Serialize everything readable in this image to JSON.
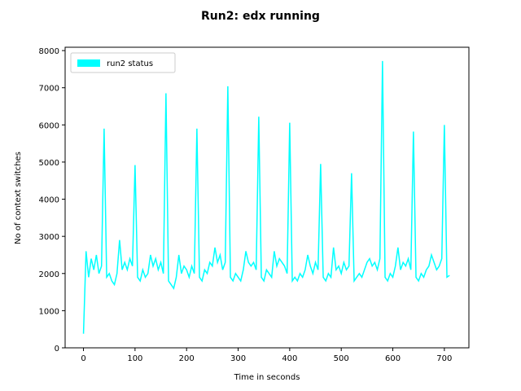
{
  "chart_data": {
    "type": "line",
    "title": "Run2: edx running",
    "xlabel": "Time  in seconds",
    "ylabel": "No of context switches",
    "x": [
      0,
      5,
      10,
      15,
      20,
      25,
      30,
      35,
      40,
      45,
      50,
      55,
      60,
      65,
      70,
      75,
      80,
      85,
      90,
      95,
      100,
      105,
      110,
      115,
      120,
      125,
      130,
      135,
      140,
      145,
      150,
      155,
      160,
      165,
      170,
      175,
      180,
      185,
      190,
      195,
      200,
      205,
      210,
      215,
      220,
      225,
      230,
      235,
      240,
      245,
      250,
      255,
      260,
      265,
      270,
      275,
      280,
      285,
      290,
      295,
      300,
      305,
      310,
      315,
      320,
      325,
      330,
      335,
      340,
      345,
      350,
      355,
      360,
      365,
      370,
      375,
      380,
      385,
      390,
      395,
      400,
      405,
      410,
      415,
      420,
      425,
      430,
      435,
      440,
      445,
      450,
      455,
      460,
      465,
      470,
      475,
      480,
      485,
      490,
      495,
      500,
      505,
      510,
      515,
      520,
      525,
      530,
      535,
      540,
      545,
      550,
      555,
      560,
      565,
      570,
      575,
      580,
      585,
      590,
      595,
      600,
      605,
      610,
      615,
      620,
      625,
      630,
      635,
      640,
      645,
      650,
      655,
      660,
      665,
      670,
      675,
      680,
      685,
      690,
      695,
      700,
      705,
      710
    ],
    "series": [
      {
        "name": "run2 status",
        "color": "#00ffff",
        "values": [
          380,
          2600,
          1900,
          2400,
          2100,
          2500,
          2000,
          2200,
          5900,
          1900,
          2000,
          1800,
          1700,
          2000,
          2900,
          2100,
          2300,
          2100,
          2400,
          2200,
          4920,
          1900,
          1800,
          2100,
          1900,
          2000,
          2500,
          2200,
          2400,
          2100,
          2300,
          2000,
          6850,
          1800,
          1700,
          1600,
          1900,
          2500,
          2000,
          2200,
          2100,
          1900,
          2200,
          2000,
          5900,
          1900,
          1800,
          2100,
          2000,
          2300,
          2200,
          2700,
          2300,
          2500,
          2100,
          2300,
          7040,
          1900,
          1800,
          2000,
          1900,
          1800,
          2100,
          2600,
          2300,
          2200,
          2300,
          2100,
          6220,
          1900,
          1800,
          2100,
          2000,
          1900,
          2600,
          2200,
          2400,
          2300,
          2200,
          2000,
          6060,
          1800,
          1900,
          1800,
          2000,
          1900,
          2100,
          2500,
          2200,
          2000,
          2300,
          2100,
          4950,
          1900,
          1800,
          2000,
          1900,
          2700,
          2100,
          2200,
          2000,
          2300,
          2100,
          2200,
          4700,
          1800,
          1900,
          2000,
          1900,
          2100,
          2300,
          2400,
          2200,
          2300,
          2100,
          2400,
          7720,
          1900,
          1800,
          2000,
          1900,
          2200,
          2700,
          2100,
          2300,
          2200,
          2400,
          2100,
          5820,
          1900,
          1800,
          2000,
          1900,
          2100,
          2200,
          2500,
          2300,
          2100,
          2200,
          2400,
          6000,
          1900,
          1950
        ]
      }
    ],
    "xlim": [
      -35.6,
      747.6
    ],
    "ylim": [
      0,
      8090
    ],
    "xticks": [
      0,
      100,
      200,
      300,
      400,
      500,
      600,
      700
    ],
    "yticks": [
      0,
      1000,
      2000,
      3000,
      4000,
      5000,
      6000,
      7000,
      8000
    ],
    "legend": "upper left"
  }
}
